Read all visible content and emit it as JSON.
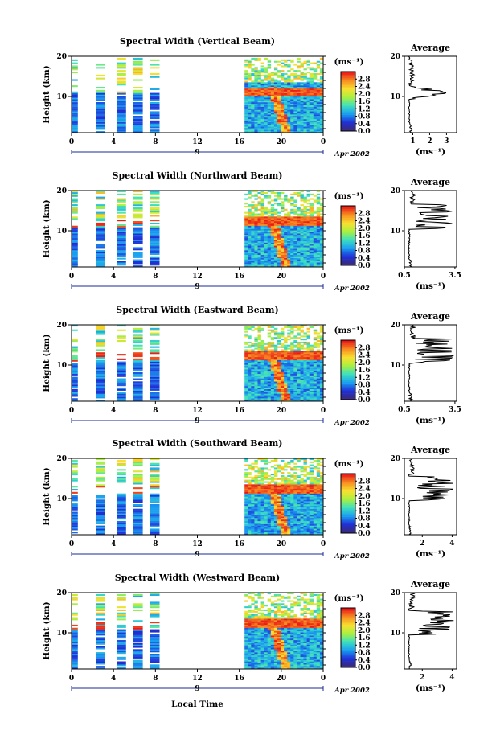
{
  "chart_data": {
    "type": "heatmap",
    "common": {
      "ylabel": "Height (km)",
      "xlabel": "Local Time",
      "x_ticks": [
        "0",
        "4",
        "8",
        "12",
        "16",
        "20",
        "0"
      ],
      "x_tick_values": [
        0,
        4,
        8,
        12,
        16,
        20,
        24
      ],
      "xlim": [
        0,
        24
      ],
      "day_label": "9",
      "date_label": "Apr 2002",
      "y_ticks": [
        "20",
        "10"
      ],
      "y_tick_values": [
        20,
        10
      ],
      "ylim": [
        1,
        20
      ],
      "colorbar_unit": "(ms⁻¹)",
      "colorbar_ticks": [
        "2.8",
        "2.4",
        "2.0",
        "1.6",
        "1.2",
        "0.8",
        "0.4",
        "0.0"
      ],
      "colorbar_values": [
        2.8,
        2.4,
        2.0,
        1.6,
        1.2,
        0.8,
        0.4,
        0.0
      ],
      "colorbar_range": [
        0,
        3.2
      ],
      "avg_title": "Average",
      "avg_xlabel": "(ms⁻¹)",
      "data_time_segments": [
        [
          0,
          0.6
        ],
        [
          2.3,
          3.2
        ],
        [
          4.3,
          5.2
        ],
        [
          5.9,
          6.8
        ],
        [
          7.5,
          8.4
        ],
        [
          16.5,
          24.0
        ]
      ],
      "colors": {
        "low": "#2a3cc8",
        "mid": "#1fb0e8",
        "high": "#e83a2a",
        "colorbar_stops": [
          "#3a2a78",
          "#2030d8",
          "#1aa0f0",
          "#3de0c0",
          "#a8f040",
          "#f8e030",
          "#f89020",
          "#e81818"
        ]
      }
    },
    "panels": [
      {
        "title": "Spectral Width (Vertical Beam)",
        "avg_ticks": [
          "1",
          "2",
          "3"
        ],
        "avg_tick_values": [
          1,
          2,
          3
        ],
        "avg_xlim": [
          0.5,
          3.6
        ],
        "avg_peak_height_km": 11
      },
      {
        "title": "Spectral Width (Northward Beam)",
        "avg_ticks": [
          "0.5",
          "3.5"
        ],
        "avg_tick_values": [
          0.5,
          3.5
        ],
        "avg_xlim": [
          0.5,
          3.6
        ],
        "avg_peak_height_km": 13
      },
      {
        "title": "Spectral Width (Eastward Beam)",
        "avg_ticks": [
          "0.5",
          "3.5"
        ],
        "avg_tick_values": [
          0.5,
          3.5
        ],
        "avg_xlim": [
          0.5,
          3.6
        ],
        "avg_peak_height_km": 13
      },
      {
        "title": "Spectral Width (Southward Beam)",
        "avg_ticks": [
          "2",
          "4"
        ],
        "avg_tick_values": [
          2,
          4
        ],
        "avg_xlim": [
          0.8,
          4.3
        ],
        "avg_peak_height_km": 12
      },
      {
        "title": "Spectral Width (Westward Beam)",
        "avg_ticks": [
          "2",
          "4"
        ],
        "avg_tick_values": [
          2,
          4
        ],
        "avg_xlim": [
          0.8,
          4.3
        ],
        "avg_peak_height_km": 12
      }
    ]
  }
}
